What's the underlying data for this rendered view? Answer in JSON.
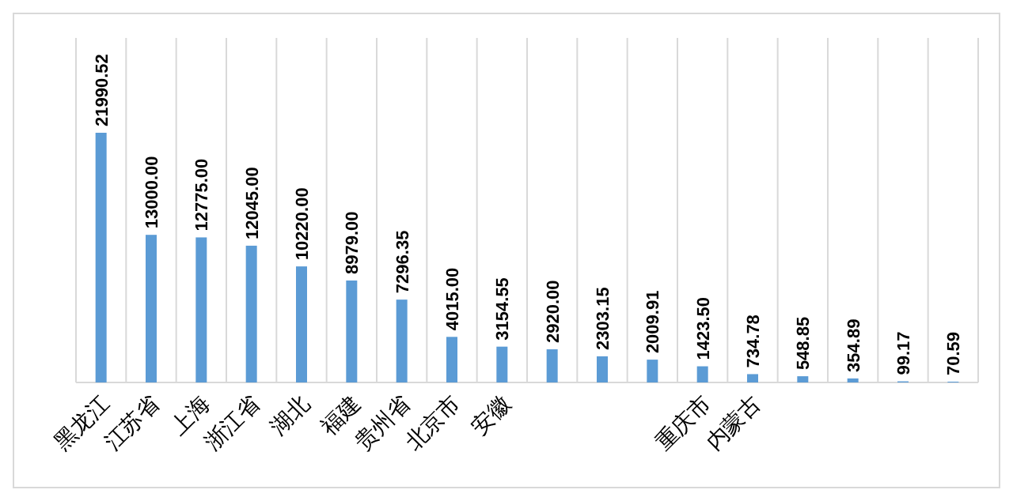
{
  "chart_data": {
    "type": "bar",
    "categories": [
      "黑龙江",
      "江苏省",
      "上海",
      "浙江省",
      "湖北",
      "福建",
      "贵州省",
      "北京市",
      "安徽",
      null,
      null,
      null,
      "重庆市",
      "内蒙古",
      null,
      null,
      null,
      null
    ],
    "values": [
      21990.52,
      13000.0,
      12775.0,
      12045.0,
      10220.0,
      8979.0,
      7296.35,
      4015.0,
      3154.55,
      2920.0,
      2303.15,
      2009.91,
      1423.5,
      734.78,
      548.85,
      354.89,
      99.17,
      70.59
    ],
    "value_labels": [
      "21990.52",
      "13000.00",
      "12775.00",
      "12045.00",
      "10220.00",
      "8979.00",
      "7296.35",
      "4015.00",
      "3154.55",
      "2920.00",
      "2303.15",
      "2009.91",
      "1423.50",
      "734.78",
      "548.85",
      "354.89",
      "99.17",
      "70.59"
    ],
    "color": "#5b9bd5",
    "grid": "x"
  }
}
